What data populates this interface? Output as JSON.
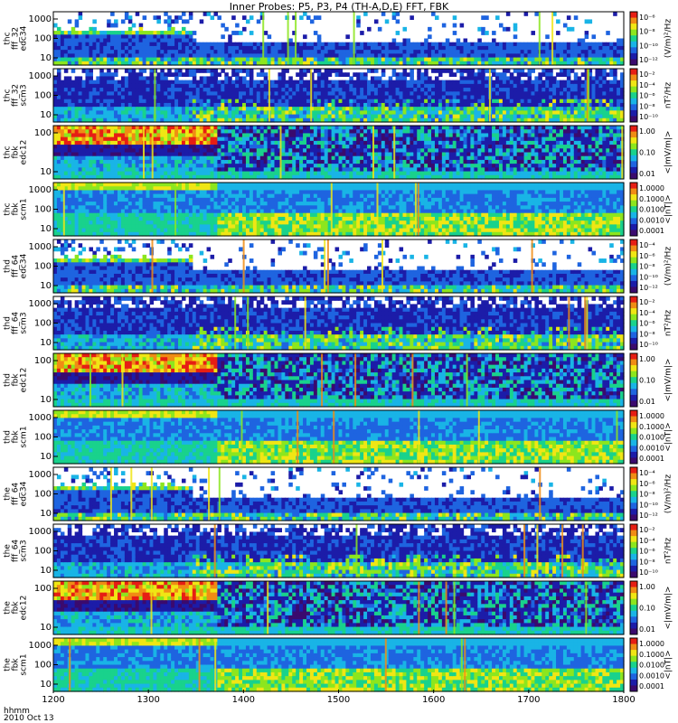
{
  "chart_data": {
    "type": "heatmap",
    "title": "Inner Probes: P5, P3, P4 (TH-A,D,E) FFT, FBK",
    "x_axis": {
      "range": [
        1200,
        1800
      ],
      "ticks": [
        "1200",
        "1300",
        "1400",
        "1500",
        "1600",
        "1700",
        "1800"
      ],
      "label_line1": "hhmm",
      "label_line2": "2010 Oct 13"
    },
    "colors": {
      "scale": [
        "#3a0a6e",
        "#1c1ca8",
        "#1e64e0",
        "#19b4e6",
        "#19d28c",
        "#8ce61e",
        "#f0e614",
        "#f08c14",
        "#e61e14"
      ],
      "background": "#ffffff"
    },
    "panels": [
      {
        "probe": "thc",
        "instrument": "fff_32",
        "channel": "edc34",
        "y_ticks": [
          "1000",
          "100",
          "10"
        ],
        "cbar_label": "(V/m)²/Hz",
        "cbar_ticks": [
          "10⁻⁶",
          "10⁻⁸",
          "10⁻¹⁰",
          "10⁻¹²"
        ],
        "kind": "fff_e",
        "strong_until": 1345
      },
      {
        "probe": "thc",
        "instrument": "fff_32",
        "channel": "scm3",
        "y_ticks": [
          "1000",
          "100",
          "10"
        ],
        "cbar_label": "nT²/Hz",
        "cbar_ticks": [
          "10⁻²",
          "10⁻⁴",
          "10⁻⁶",
          "10⁻⁸",
          "10⁻¹⁰"
        ],
        "kind": "fff_b",
        "strong_until": 1345
      },
      {
        "probe": "thc",
        "instrument": "fbk",
        "channel": "edc12",
        "y_ticks": [
          "100",
          "10"
        ],
        "cbar_label": "<|mV/m|>",
        "cbar_ticks": [
          "1.00",
          "0.10",
          "0.01"
        ],
        "kind": "fbk_e",
        "strong_until": 1370
      },
      {
        "probe": "thc",
        "instrument": "fbk",
        "channel": "scm1",
        "y_ticks": [
          "1000",
          "100",
          "10"
        ],
        "cbar_label": "<|nT|>",
        "cbar_ticks": [
          "1.0000",
          "0.1000",
          "0.0100",
          "0.0010",
          "0.0001"
        ],
        "kind": "fbk_b",
        "strong_until": 1370
      },
      {
        "probe": "thd",
        "instrument": "fff_64",
        "channel": "edc34",
        "y_ticks": [
          "1000",
          "100",
          "10"
        ],
        "cbar_label": "(V/m)²/Hz",
        "cbar_ticks": [
          "10⁻⁴",
          "10⁻⁶",
          "10⁻⁸",
          "10⁻¹⁰",
          "10⁻¹²"
        ],
        "kind": "fff_e",
        "strong_until": 1345
      },
      {
        "probe": "thd",
        "instrument": "fff_64",
        "channel": "scm3",
        "y_ticks": [
          "1000",
          "100",
          "10"
        ],
        "cbar_label": "nT²/Hz",
        "cbar_ticks": [
          "10⁻²",
          "10⁻⁴",
          "10⁻⁶",
          "10⁻⁸",
          "10⁻¹⁰"
        ],
        "kind": "fff_b",
        "strong_until": 1345
      },
      {
        "probe": "thd",
        "instrument": "fbk",
        "channel": "edc12",
        "y_ticks": [
          "100",
          "10"
        ],
        "cbar_label": "<|mV/m|>",
        "cbar_ticks": [
          "1.00",
          "0.10",
          "0.01"
        ],
        "kind": "fbk_e",
        "strong_until": 1370
      },
      {
        "probe": "thd",
        "instrument": "fbk",
        "channel": "scm1",
        "y_ticks": [
          "1000",
          "100",
          "10"
        ],
        "cbar_label": "<|nT|>",
        "cbar_ticks": [
          "1.0000",
          "0.1000",
          "0.0100",
          "0.0010",
          "0.0001"
        ],
        "kind": "fbk_b",
        "strong_until": 1370
      },
      {
        "probe": "the",
        "instrument": "fff_64",
        "channel": "edc34",
        "y_ticks": [
          "1000",
          "100",
          "10"
        ],
        "cbar_label": "(V/m)²/Hz",
        "cbar_ticks": [
          "10⁻⁴",
          "10⁻⁶",
          "10⁻⁸",
          "10⁻¹⁰",
          "10⁻¹²"
        ],
        "kind": "fff_e",
        "strong_until": 1345
      },
      {
        "probe": "the",
        "instrument": "fff_64",
        "channel": "scm3",
        "y_ticks": [
          "1000",
          "100",
          "10"
        ],
        "cbar_label": "nT²/Hz",
        "cbar_ticks": [
          "10⁻²",
          "10⁻⁴",
          "10⁻⁶",
          "10⁻⁸",
          "10⁻¹⁰"
        ],
        "kind": "fff_b",
        "strong_until": 1345
      },
      {
        "probe": "the",
        "instrument": "fbk",
        "channel": "edc12",
        "y_ticks": [
          "100",
          "10"
        ],
        "cbar_label": "<|mV/m|>",
        "cbar_ticks": [
          "1.00",
          "0.10",
          "0.01"
        ],
        "kind": "fbk_e",
        "strong_until": 1370
      },
      {
        "probe": "the",
        "instrument": "fbk",
        "channel": "scm1",
        "y_ticks": [
          "1000",
          "100",
          "10"
        ],
        "cbar_label": "<|nT|>",
        "cbar_ticks": [
          "1.0000",
          "0.1000",
          "0.0100",
          "0.0010",
          "0.0001"
        ],
        "kind": "fbk_b",
        "strong_until": 1370
      }
    ]
  }
}
